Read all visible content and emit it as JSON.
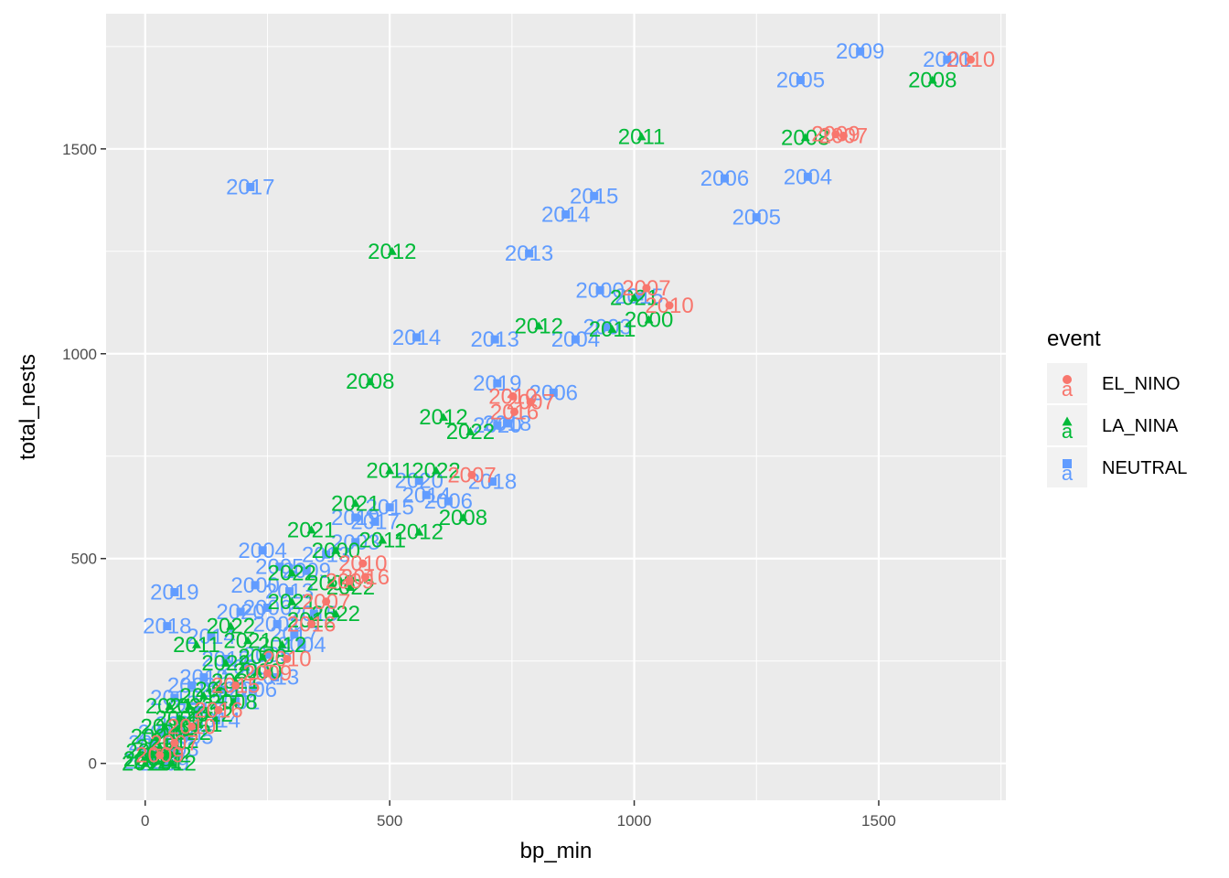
{
  "chart_data": {
    "type": "scatter",
    "title": "",
    "xlabel": "bp_min",
    "ylabel": "total_nests",
    "xlim": [
      -80,
      1760
    ],
    "ylim": [
      -90,
      1830
    ],
    "x_ticks": [
      0,
      500,
      1000,
      1500
    ],
    "y_ticks": [
      0,
      500,
      1000,
      1500
    ],
    "grid": true,
    "legend_position": "right",
    "legend": {
      "title": "event",
      "entries": [
        {
          "name": "EL_NINO",
          "color": "#F8766D",
          "shape": "circle",
          "key_text": "a"
        },
        {
          "name": "LA_NINA",
          "color": "#00BA38",
          "shape": "triangle",
          "key_text": "a"
        },
        {
          "name": "NEUTRAL",
          "color": "#619CFF",
          "shape": "square",
          "key_text": "a"
        }
      ]
    },
    "series": [
      {
        "name": "EL_NINO",
        "color": "#F8766D",
        "shape": "circle",
        "points": [
          {
            "x": 1688,
            "y": 1718,
            "label": "2010"
          },
          {
            "x": 1428,
            "y": 1532,
            "label": "2007"
          },
          {
            "x": 1412,
            "y": 1536,
            "label": "2009"
          },
          {
            "x": 1025,
            "y": 1160,
            "label": "2007"
          },
          {
            "x": 1072,
            "y": 1118,
            "label": "2010"
          },
          {
            "x": 752,
            "y": 896,
            "label": "2010"
          },
          {
            "x": 788,
            "y": 882,
            "label": "2007"
          },
          {
            "x": 755,
            "y": 858,
            "label": "2016"
          },
          {
            "x": 668,
            "y": 704,
            "label": "2007"
          },
          {
            "x": 445,
            "y": 488,
            "label": "2010"
          },
          {
            "x": 450,
            "y": 455,
            "label": "2016"
          },
          {
            "x": 418,
            "y": 445,
            "label": "2009"
          },
          {
            "x": 370,
            "y": 395,
            "label": "2007"
          },
          {
            "x": 340,
            "y": 340,
            "label": "2016"
          },
          {
            "x": 290,
            "y": 255,
            "label": "2010"
          },
          {
            "x": 250,
            "y": 220,
            "label": "2009"
          },
          {
            "x": 185,
            "y": 190,
            "label": "2015"
          },
          {
            "x": 150,
            "y": 130,
            "label": "2016"
          },
          {
            "x": 95,
            "y": 90,
            "label": "2010"
          },
          {
            "x": 60,
            "y": 50,
            "label": "2007"
          },
          {
            "x": 30,
            "y": 20,
            "label": "2009"
          }
        ]
      },
      {
        "name": "LA_NINA",
        "color": "#00BA38",
        "shape": "triangle",
        "points": [
          {
            "x": 1610,
            "y": 1668,
            "label": "2008"
          },
          {
            "x": 1015,
            "y": 1530,
            "label": "2011"
          },
          {
            "x": 1350,
            "y": 1528,
            "label": "2008"
          },
          {
            "x": 505,
            "y": 1250,
            "label": "2012"
          },
          {
            "x": 1000,
            "y": 1137,
            "label": "2021"
          },
          {
            "x": 1030,
            "y": 1083,
            "label": "2000"
          },
          {
            "x": 805,
            "y": 1068,
            "label": "2012"
          },
          {
            "x": 955,
            "y": 1060,
            "label": "2011"
          },
          {
            "x": 460,
            "y": 932,
            "label": "2008"
          },
          {
            "x": 610,
            "y": 845,
            "label": "2012"
          },
          {
            "x": 665,
            "y": 810,
            "label": "2022"
          },
          {
            "x": 500,
            "y": 715,
            "label": "2011"
          },
          {
            "x": 595,
            "y": 715,
            "label": "2022"
          },
          {
            "x": 430,
            "y": 635,
            "label": "2021"
          },
          {
            "x": 650,
            "y": 600,
            "label": "2008"
          },
          {
            "x": 560,
            "y": 565,
            "label": "2012"
          },
          {
            "x": 340,
            "y": 570,
            "label": "2021"
          },
          {
            "x": 485,
            "y": 545,
            "label": "2011"
          },
          {
            "x": 390,
            "y": 520,
            "label": "2000"
          },
          {
            "x": 300,
            "y": 465,
            "label": "2022"
          },
          {
            "x": 380,
            "y": 440,
            "label": "2008"
          },
          {
            "x": 420,
            "y": 430,
            "label": "2022"
          },
          {
            "x": 300,
            "y": 395,
            "label": "2021"
          },
          {
            "x": 340,
            "y": 350,
            "label": "2012"
          },
          {
            "x": 390,
            "y": 365,
            "label": "2022"
          },
          {
            "x": 175,
            "y": 335,
            "label": "2022"
          },
          {
            "x": 210,
            "y": 300,
            "label": "2021"
          },
          {
            "x": 105,
            "y": 290,
            "label": "2011"
          },
          {
            "x": 280,
            "y": 290,
            "label": "2012"
          },
          {
            "x": 240,
            "y": 260,
            "label": "2008"
          },
          {
            "x": 165,
            "y": 245,
            "label": "2022"
          },
          {
            "x": 230,
            "y": 225,
            "label": "2000"
          },
          {
            "x": 185,
            "y": 200,
            "label": "2021"
          },
          {
            "x": 150,
            "y": 180,
            "label": "2011"
          },
          {
            "x": 120,
            "y": 165,
            "label": "2012"
          },
          {
            "x": 180,
            "y": 150,
            "label": "2008"
          },
          {
            "x": 90,
            "y": 140,
            "label": "2022"
          },
          {
            "x": 50,
            "y": 140,
            "label": "2021"
          },
          {
            "x": 130,
            "y": 120,
            "label": "2012"
          },
          {
            "x": 70,
            "y": 110,
            "label": "2000"
          },
          {
            "x": 110,
            "y": 95,
            "label": "2011"
          },
          {
            "x": 40,
            "y": 90,
            "label": "2008"
          },
          {
            "x": 85,
            "y": 75,
            "label": "2022"
          },
          {
            "x": 20,
            "y": 65,
            "label": "2021"
          },
          {
            "x": 60,
            "y": 55,
            "label": "2012"
          },
          {
            "x": 30,
            "y": 40,
            "label": "2011"
          },
          {
            "x": 10,
            "y": 30,
            "label": "2008"
          },
          {
            "x": 45,
            "y": 20,
            "label": "2022"
          },
          {
            "x": 5,
            "y": 10,
            "label": "2000"
          },
          {
            "x": 25,
            "y": 5,
            "label": "2021"
          },
          {
            "x": 55,
            "y": 0,
            "label": "2012"
          },
          {
            "x": 0,
            "y": 0,
            "label": "2011"
          }
        ]
      },
      {
        "name": "NEUTRAL",
        "color": "#619CFF",
        "shape": "square",
        "points": [
          {
            "x": 1462,
            "y": 1738,
            "label": "2009"
          },
          {
            "x": 1640,
            "y": 1718,
            "label": "2001"
          },
          {
            "x": 1340,
            "y": 1668,
            "label": "2005"
          },
          {
            "x": 1185,
            "y": 1428,
            "label": "2006"
          },
          {
            "x": 1355,
            "y": 1432,
            "label": "2004"
          },
          {
            "x": 215,
            "y": 1407,
            "label": "2017"
          },
          {
            "x": 918,
            "y": 1385,
            "label": "2015"
          },
          {
            "x": 860,
            "y": 1340,
            "label": "2014"
          },
          {
            "x": 1250,
            "y": 1333,
            "label": "2005"
          },
          {
            "x": 785,
            "y": 1245,
            "label": "2013"
          },
          {
            "x": 930,
            "y": 1155,
            "label": "2000"
          },
          {
            "x": 1010,
            "y": 1140,
            "label": "2015"
          },
          {
            "x": 555,
            "y": 1040,
            "label": "2014"
          },
          {
            "x": 715,
            "y": 1035,
            "label": "2013"
          },
          {
            "x": 880,
            "y": 1035,
            "label": "2004"
          },
          {
            "x": 945,
            "y": 1065,
            "label": "2003"
          },
          {
            "x": 720,
            "y": 928,
            "label": "2019"
          },
          {
            "x": 835,
            "y": 905,
            "label": "2006"
          },
          {
            "x": 740,
            "y": 830,
            "label": "2018"
          },
          {
            "x": 720,
            "y": 825,
            "label": "2020"
          },
          {
            "x": 710,
            "y": 688,
            "label": "2018"
          },
          {
            "x": 560,
            "y": 690,
            "label": "2020"
          },
          {
            "x": 620,
            "y": 640,
            "label": "2006"
          },
          {
            "x": 575,
            "y": 655,
            "label": "2014"
          },
          {
            "x": 500,
            "y": 625,
            "label": "2015"
          },
          {
            "x": 430,
            "y": 600,
            "label": "2019"
          },
          {
            "x": 470,
            "y": 590,
            "label": "2017"
          },
          {
            "x": 240,
            "y": 520,
            "label": "2004"
          },
          {
            "x": 370,
            "y": 510,
            "label": "2013"
          },
          {
            "x": 430,
            "y": 540,
            "label": "2003"
          },
          {
            "x": 275,
            "y": 480,
            "label": "2005"
          },
          {
            "x": 330,
            "y": 470,
            "label": "2009"
          },
          {
            "x": 225,
            "y": 435,
            "label": "2000"
          },
          {
            "x": 60,
            "y": 418,
            "label": "2019"
          },
          {
            "x": 295,
            "y": 420,
            "label": "2013"
          },
          {
            "x": 250,
            "y": 380,
            "label": "2006"
          },
          {
            "x": 195,
            "y": 370,
            "label": "2020"
          },
          {
            "x": 345,
            "y": 365,
            "label": "2015"
          },
          {
            "x": 270,
            "y": 340,
            "label": "2001"
          },
          {
            "x": 45,
            "y": 335,
            "label": "2018"
          },
          {
            "x": 305,
            "y": 315,
            "label": "2017"
          },
          {
            "x": 135,
            "y": 310,
            "label": "2014"
          },
          {
            "x": 320,
            "y": 290,
            "label": "2004"
          },
          {
            "x": 250,
            "y": 265,
            "label": "2005"
          },
          {
            "x": 165,
            "y": 255,
            "label": "2018"
          },
          {
            "x": 205,
            "y": 235,
            "label": "2003"
          },
          {
            "x": 120,
            "y": 210,
            "label": "2019"
          },
          {
            "x": 265,
            "y": 210,
            "label": "2013"
          },
          {
            "x": 95,
            "y": 190,
            "label": "2009"
          },
          {
            "x": 160,
            "y": 180,
            "label": "2020"
          },
          {
            "x": 220,
            "y": 180,
            "label": "2006"
          },
          {
            "x": 60,
            "y": 160,
            "label": "2015"
          },
          {
            "x": 185,
            "y": 150,
            "label": "2001"
          },
          {
            "x": 110,
            "y": 130,
            "label": "2017"
          },
          {
            "x": 145,
            "y": 105,
            "label": "2014"
          },
          {
            "x": 70,
            "y": 95,
            "label": "2000"
          },
          {
            "x": 35,
            "y": 75,
            "label": "2004"
          },
          {
            "x": 90,
            "y": 65,
            "label": "2005"
          },
          {
            "x": 15,
            "y": 50,
            "label": "2018"
          },
          {
            "x": 60,
            "y": 35,
            "label": "2003"
          },
          {
            "x": 25,
            "y": 20,
            "label": "2019"
          },
          {
            "x": 5,
            "y": 5,
            "label": "2013"
          },
          {
            "x": 40,
            "y": 0,
            "label": "2009"
          }
        ]
      }
    ]
  }
}
